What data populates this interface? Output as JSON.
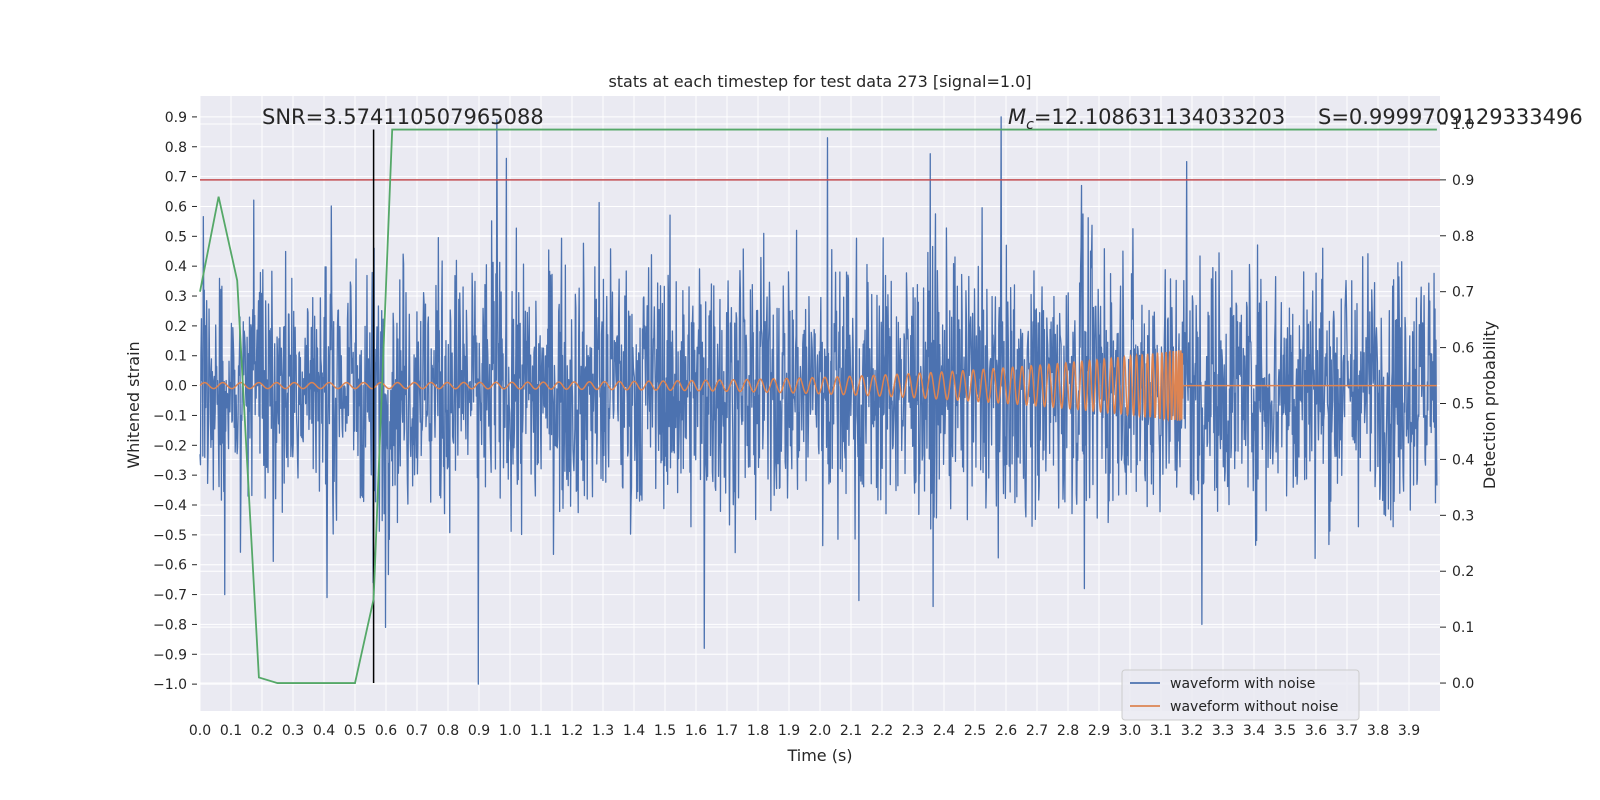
{
  "chart_data": {
    "type": "line",
    "title": "stats at each timestep for test data 273 [signal=1.0]",
    "xlabel": "Time (s)",
    "ylabel": "Whitened strain",
    "y2label": "Detection probability",
    "xlim": [
      0.0,
      4.0
    ],
    "ylim": [
      -1.09,
      0.97
    ],
    "y2lim": [
      -0.05,
      1.05
    ],
    "xticks": [
      "0.0",
      "0.1",
      "0.2",
      "0.3",
      "0.4",
      "0.5",
      "0.6",
      "0.7",
      "0.8",
      "0.9",
      "1.0",
      "1.1",
      "1.2",
      "1.3",
      "1.4",
      "1.5",
      "1.6",
      "1.7",
      "1.8",
      "1.9",
      "2.0",
      "2.1",
      "2.2",
      "2.3",
      "2.4",
      "2.5",
      "2.6",
      "2.7",
      "2.8",
      "2.9",
      "3.0",
      "3.1",
      "3.2",
      "3.3",
      "3.4",
      "3.5",
      "3.6",
      "3.7",
      "3.8",
      "3.9"
    ],
    "yticks": [
      "0.9",
      "0.8",
      "0.7",
      "0.6",
      "0.5",
      "0.4",
      "0.3",
      "0.2",
      "0.1",
      "0.0",
      "−0.1",
      "−0.2",
      "−0.3",
      "−0.4",
      "−0.5",
      "−0.6",
      "−0.7",
      "−0.8",
      "−0.9",
      "−1.0"
    ],
    "y2ticks": [
      "1.0",
      "0.9",
      "0.8",
      "0.7",
      "0.6",
      "0.5",
      "0.4",
      "0.3",
      "0.2",
      "0.1",
      "0.0"
    ],
    "annotations": {
      "snr": "SNR=3.574110507965088",
      "mc_symbol": "M",
      "mc_sub": "c",
      "mc_value": "=12.108631134033203",
      "s": "S=0.9999709129333496"
    },
    "threshold": 0.9,
    "marker_time": 0.56,
    "noise_envelope": {
      "mean_amplitude": 0.3,
      "max": 0.9,
      "min": -1.0
    },
    "noise_spikes": [
      {
        "t": 0.96,
        "v": 0.89
      },
      {
        "t": 2.03,
        "v": 0.83
      },
      {
        "t": 3.19,
        "v": 0.75
      },
      {
        "t": 0.9,
        "v": -1.0
      },
      {
        "t": 1.63,
        "v": -0.88
      },
      {
        "t": 3.24,
        "v": -0.8
      },
      {
        "t": 0.56,
        "v": -0.66
      },
      {
        "t": 0.08,
        "v": -0.7
      },
      {
        "t": 0.41,
        "v": -0.71
      },
      {
        "t": 0.6,
        "v": -0.81
      },
      {
        "t": 2.85,
        "v": 0.67
      },
      {
        "t": 2.86,
        "v": -0.68
      },
      {
        "t": 2.13,
        "v": -0.72
      },
      {
        "t": 2.37,
        "v": -0.74
      }
    ],
    "chirp": {
      "t_start": 0.0,
      "t_merge": 3.17,
      "amp_start": 0.01,
      "amp_merge": 0.12
    },
    "series": [
      {
        "name": "waveform with noise",
        "color": "#4c72b0",
        "axis": "left"
      },
      {
        "name": "waveform without noise",
        "color": "#dd8452",
        "axis": "left"
      },
      {
        "name": "detection probability",
        "color": "#55a868",
        "axis": "right",
        "x": [
          0.0,
          0.06,
          0.12,
          0.19,
          0.25,
          0.31,
          0.37,
          0.44,
          0.5,
          0.56,
          0.62,
          1.0,
          2.0,
          3.0,
          3.99
        ],
        "values": [
          0.7,
          0.87,
          0.72,
          0.01,
          0.0,
          0.0,
          0.0,
          0.0,
          0.0,
          0.15,
          0.99,
          0.99,
          0.99,
          0.99,
          0.99
        ]
      }
    ],
    "legend": {
      "placement": "lower-right",
      "entries": [
        "waveform with noise",
        "waveform without noise"
      ]
    }
  }
}
